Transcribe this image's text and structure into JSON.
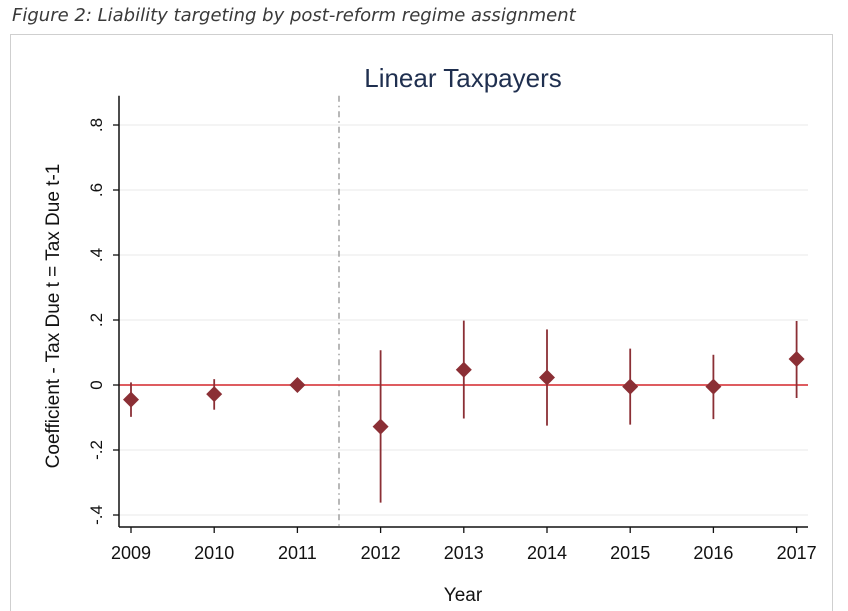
{
  "figure_caption": "Figure 2: Liability targeting by post-reform regime assignment",
  "chart_data": {
    "type": "scatter",
    "title": "Linear Taxpayers",
    "xlabel": "Year",
    "ylabel": "Coefficient - Tax Due t = Tax Due t-1",
    "categories": [
      "2009",
      "2010",
      "2011",
      "2012",
      "2013",
      "2014",
      "2015",
      "2016",
      "2017"
    ],
    "y_ticks": [
      -0.4,
      -0.2,
      0,
      0.2,
      0.4,
      0.6,
      0.8
    ],
    "y_tick_labels": [
      "-.4",
      "-.2",
      "0",
      ".2",
      ".4",
      ".6",
      ".8"
    ],
    "ylim": [
      -0.43,
      0.89
    ],
    "series": [
      {
        "estimates": [
          -0.045,
          -0.028,
          0.0,
          -0.128,
          0.047,
          0.023,
          -0.005,
          -0.005,
          0.08
        ],
        "ci_low": [
          -0.098,
          -0.076,
          0.0,
          -0.362,
          -0.103,
          -0.125,
          -0.122,
          -0.105,
          -0.04
        ],
        "ci_high": [
          0.008,
          0.018,
          0.0,
          0.107,
          0.198,
          0.171,
          0.112,
          0.093,
          0.197
        ]
      }
    ],
    "reference_line_y": 0,
    "event_line_between": [
      "2011",
      "2012"
    ],
    "grid": "horizontal",
    "colors": {
      "marker": "#8b2f35",
      "zero_line": "#d9454a",
      "event_line": "#9a9a9a",
      "title": "#1f2f4f",
      "axis": "#111111",
      "grid": "#e9e9e9"
    }
  }
}
